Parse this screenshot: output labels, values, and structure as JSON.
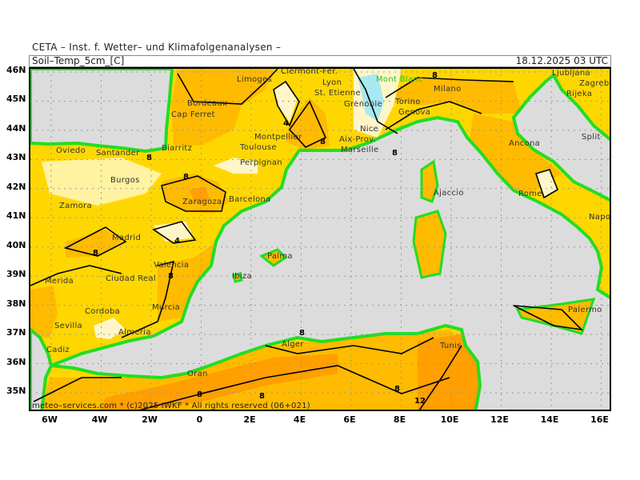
{
  "header": {
    "institute": "CETA – Inst. f. Wetter– und Klimafolgenanalysen –",
    "parameter": "Soil–Temp_5cm_[C]",
    "valid_time": "18.12.2025 03 UTC"
  },
  "copyright": "meteo–services.com * (c)2025 IWKF * All rights reserved (06+021)",
  "lat_labels": [
    "46N",
    "45N",
    "44N",
    "43N",
    "42N",
    "41N",
    "40N",
    "39N",
    "38N",
    "37N",
    "36N",
    "35N"
  ],
  "lon_labels": [
    "6W",
    "4W",
    "2W",
    "0",
    "2E",
    "4E",
    "6E",
    "8E",
    "10E",
    "12E",
    "14E",
    "16E"
  ],
  "cities": [
    "Clermont-Fer.",
    "Limoges",
    "Lyon",
    "St. Etienne",
    "Mont Blanc",
    "Grenoble",
    "Milano",
    "Torino",
    "Genova",
    "Ljubljana",
    "Zagreb",
    "Rijeka",
    "Split",
    "Bordeaux",
    "Cap Ferret",
    "Montpellier",
    "Toulouse",
    "Nice",
    "Aix-Prov.",
    "Marseille",
    "Biarritz",
    "Perpignan",
    "Oviedo",
    "Santander",
    "Burgos",
    "Zaragoza",
    "Barcelona",
    "Zamora",
    "Madrid",
    "Valencia",
    "Merida",
    "Ciudad Real",
    "Cordoba",
    "Sevilla",
    "Murcia",
    "Almeria",
    "Cadiz",
    "Ibiza",
    "Palma",
    "Ajaccio",
    "Ancona",
    "Rome",
    "Napoli",
    "Palermo",
    "Alger",
    "Tunis",
    "Oran"
  ],
  "contour_labels": [
    "8",
    "8",
    "8",
    "8",
    "8",
    "8",
    "4",
    "4",
    "8",
    "8",
    "8",
    "8",
    "8",
    "12"
  ],
  "colors": {
    "sea": "#dcdcdc",
    "land_yellow": "#ffd700",
    "land_orange": "#ffbb00",
    "land_dark_orange": "#ff9f00",
    "land_pale": "#fff6c8",
    "coast_green": "#22dd22",
    "snow_cyan": "#a8e8f0",
    "grid": "#999999"
  }
}
